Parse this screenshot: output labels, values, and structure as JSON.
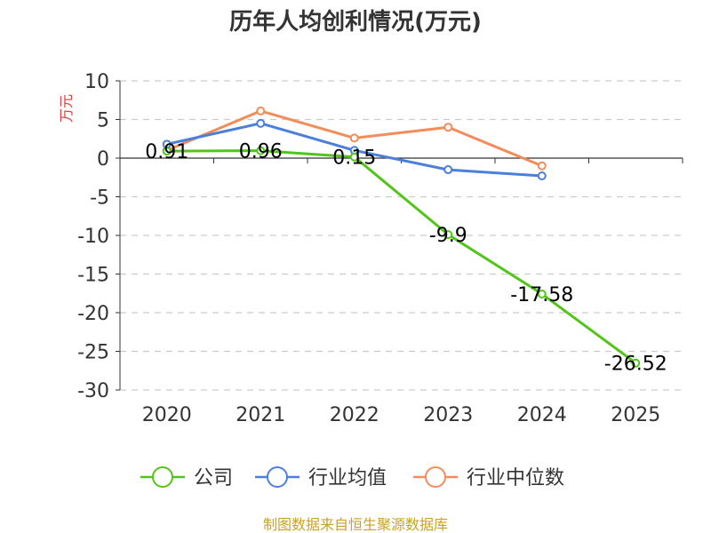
{
  "chart_data": {
    "type": "line",
    "title": "历年人均创利情况(万元)",
    "ylabel": "万元",
    "xlabel": "",
    "categories": [
      "2020",
      "2021",
      "2022",
      "2023",
      "2024",
      "2025"
    ],
    "ylim": [
      -30,
      10
    ],
    "yticks": [
      10,
      5,
      0,
      -5,
      -10,
      -15,
      -20,
      -25,
      -30
    ],
    "grid": true,
    "legend_position": "bottom",
    "series": [
      {
        "name": "公司",
        "color": "#52c41a",
        "values": [
          0.91,
          0.96,
          0.15,
          -9.9,
          -17.58,
          -26.52
        ],
        "labels": [
          "0.91",
          "0.96",
          "0.15",
          "-9.9",
          "-17.58",
          "-26.52"
        ]
      },
      {
        "name": "行业均值",
        "color": "#4a7fdc",
        "values": [
          1.8,
          4.5,
          1.0,
          -1.5,
          -2.3,
          null
        ]
      },
      {
        "name": "行业中位数",
        "color": "#f28c5a",
        "values": [
          1.0,
          6.1,
          2.6,
          4.0,
          -1.0,
          null
        ]
      }
    ],
    "source": "制图数据来自恒生聚源数据库"
  }
}
